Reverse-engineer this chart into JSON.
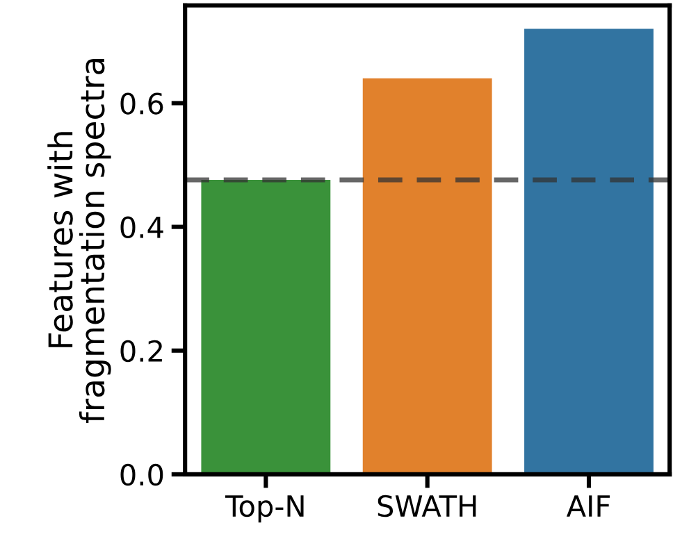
{
  "chart_data": {
    "type": "bar",
    "ylabel": "Features with\nfragmentation spectra",
    "categories": [
      "Top-N",
      "SWATH",
      "AIF"
    ],
    "values": [
      0.476,
      0.64,
      0.72
    ],
    "colors": [
      "#3a923a",
      "#e1812c",
      "#3274a1"
    ],
    "ylim": [
      0,
      0.758
    ],
    "yticks": [
      {
        "value": 0,
        "label": "0.0"
      },
      0.2,
      0.4,
      0.6
    ],
    "ref_lines": [
      {
        "axis": "y",
        "value": 0.476,
        "label": null,
        "color": "#333333",
        "line_style": "dashed"
      }
    ],
    "grid": false
  }
}
